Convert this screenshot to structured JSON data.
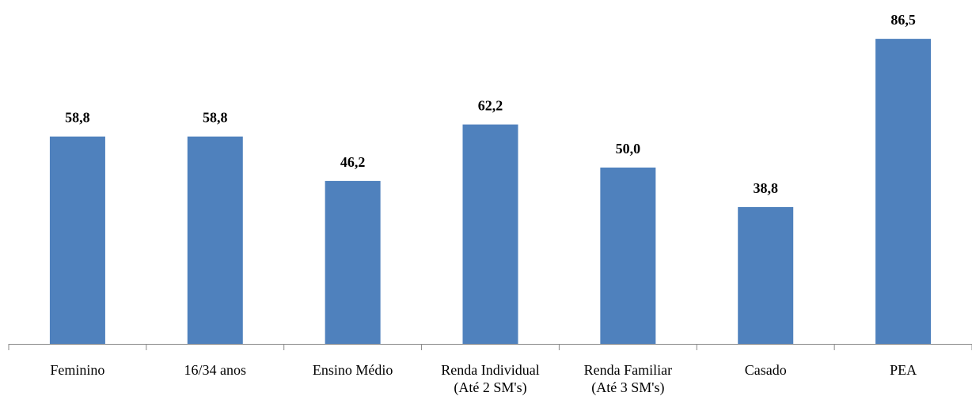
{
  "chart_data": {
    "type": "bar",
    "categories": [
      "Feminino",
      "16/34 anos",
      "Ensino Médio",
      "Renda Individual\n(Até 2 SM's)",
      "Renda Familiar\n(Até 3 SM's)",
      "Casado",
      "PEA"
    ],
    "values": [
      58.8,
      58.8,
      46.2,
      62.2,
      50.0,
      38.8,
      86.5
    ],
    "value_labels": [
      "58,8",
      "58,8",
      "46,2",
      "62,2",
      "50,0",
      "38,8",
      "86,5"
    ],
    "color": "#4f81bd",
    "ylim": [
      0,
      90
    ]
  }
}
